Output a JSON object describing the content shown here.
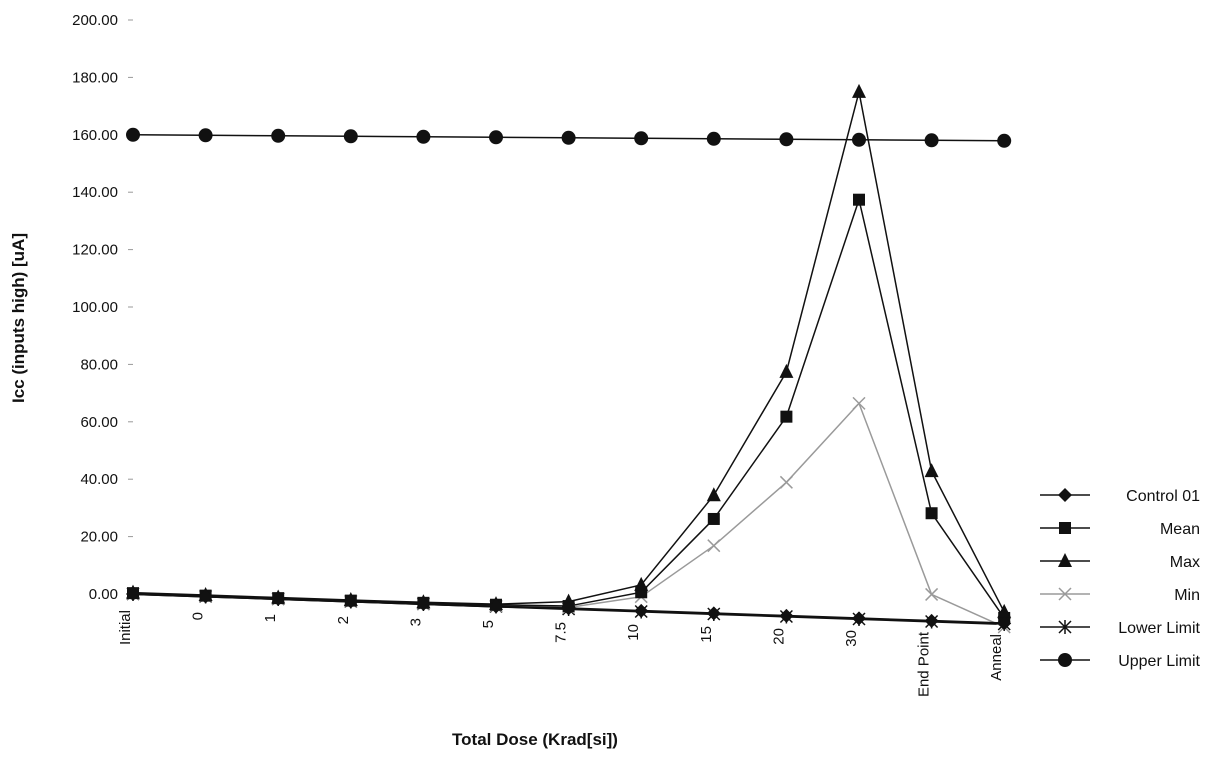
{
  "chart_data": {
    "type": "line",
    "title": "",
    "xlabel": "Total Dose (Krad[si])",
    "ylabel": "Icc (inputs high) [uA]",
    "ylim": [
      0,
      200
    ],
    "y_ticks": [
      "200.00",
      "180.00",
      "160.00",
      "140.00",
      "120.00",
      "100.00",
      "80.00",
      "60.00",
      "40.00",
      "20.00",
      "0.00"
    ],
    "categories": [
      "Initial",
      "0",
      "1",
      "2",
      "3",
      "5",
      "7.5",
      "10",
      "15",
      "20",
      "30",
      "End Point",
      "Anneal"
    ],
    "legend_position": "right",
    "grid": false,
    "series": [
      {
        "name": "Control 01",
        "marker": "diamond",
        "color": "#111111",
        "values": [
          0,
          0,
          0,
          0,
          0,
          0,
          0.2,
          0.2,
          0.2,
          0.2,
          0.2,
          0.2,
          0.2
        ]
      },
      {
        "name": "Mean",
        "marker": "square",
        "color": "#111111",
        "values": [
          0.3,
          0.3,
          0.3,
          0.3,
          0.4,
          0.6,
          1.0,
          6.5,
          32.0,
          67.0,
          140.0,
          36.0,
          2.0
        ]
      },
      {
        "name": "Max",
        "marker": "triangle",
        "color": "#111111",
        "values": [
          0.5,
          0.5,
          0.5,
          0.5,
          0.6,
          0.8,
          2.5,
          9.0,
          40.0,
          82.0,
          176.0,
          50.0,
          4.0
        ]
      },
      {
        "name": "Min",
        "marker": "x",
        "color": "#9a9a9a",
        "values": [
          0.1,
          0.1,
          0.1,
          0.1,
          0.1,
          0.2,
          0.5,
          5.0,
          23.0,
          45.0,
          72.0,
          9.0,
          -1.0
        ]
      },
      {
        "name": "Lower Limit",
        "marker": "star",
        "color": "#111111",
        "values": [
          0,
          0,
          0,
          0,
          0,
          0,
          0,
          0,
          0,
          0,
          0,
          0,
          0
        ]
      },
      {
        "name": "Upper Limit",
        "marker": "circle",
        "color": "#111111",
        "values": [
          160,
          160,
          160,
          160,
          160,
          160,
          160,
          160,
          160,
          160,
          160,
          160,
          160
        ]
      }
    ]
  }
}
